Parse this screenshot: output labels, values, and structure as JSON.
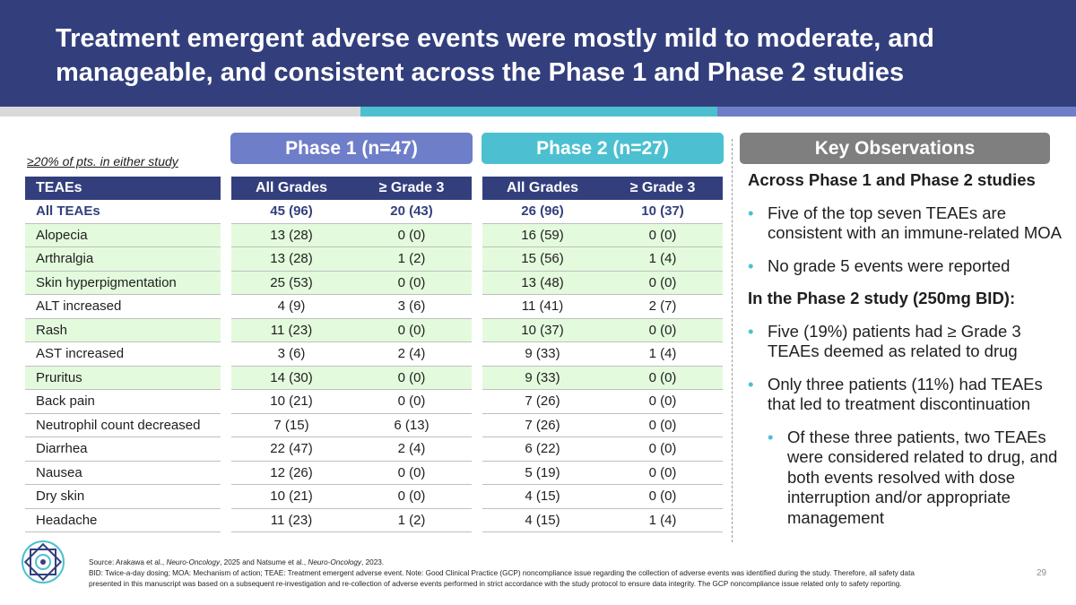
{
  "header": {
    "title_line1": "Treatment emergent adverse events were mostly mild to moderate, and",
    "title_line2": "manageable, and consistent across the Phase 1 and Phase 2 studies",
    "colors": {
      "navy": "#333f7d",
      "teal": "#4cc0d0",
      "periwinkle": "#6f7ec8",
      "gray": "#7f7f7f",
      "row_green": "#e3fbdc"
    }
  },
  "phase1_label": "Phase  1 (n=47)",
  "phase2_label": "Phase 2 (n=27)",
  "key_label": "Key Observations",
  "subnote": "≥20% of pts. in either study",
  "table": {
    "col_teae": "TEAEs",
    "col_all": "All Grades",
    "col_g3": "≥ Grade 3",
    "rows": [
      {
        "name": "All TEAEs",
        "p1_all": "45 (96)",
        "p1_g3": "20 (43)",
        "p2_all": "26 (96)",
        "p2_g3": "10 (37)"
      },
      {
        "name": "Alopecia",
        "p1_all": "13 (28)",
        "p1_g3": "0 (0)",
        "p2_all": "16 (59)",
        "p2_g3": "0 (0)"
      },
      {
        "name": "Arthralgia",
        "p1_all": "13 (28)",
        "p1_g3": "1 (2)",
        "p2_all": "15 (56)",
        "p2_g3": "1 (4)"
      },
      {
        "name": "Skin hyperpigmentation",
        "p1_all": "25 (53)",
        "p1_g3": "0 (0)",
        "p2_all": "13 (48)",
        "p2_g3": "0 (0)"
      },
      {
        "name": "ALT increased",
        "p1_all": "4 (9)",
        "p1_g3": "3 (6)",
        "p2_all": "11 (41)",
        "p2_g3": "2 (7)"
      },
      {
        "name": "Rash",
        "p1_all": "11 (23)",
        "p1_g3": "0 (0)",
        "p2_all": "10 (37)",
        "p2_g3": "0 (0)"
      },
      {
        "name": "AST increased",
        "p1_all": "3 (6)",
        "p1_g3": "2 (4)",
        "p2_all": "9 (33)",
        "p2_g3": "1 (4)"
      },
      {
        "name": "Pruritus",
        "p1_all": "14 (30)",
        "p1_g3": "0 (0)",
        "p2_all": "9 (33)",
        "p2_g3": "0 (0)"
      },
      {
        "name": "Back pain",
        "p1_all": "10 (21)",
        "p1_g3": "0 (0)",
        "p2_all": "7 (26)",
        "p2_g3": "0 (0)"
      },
      {
        "name": "Neutrophil count decreased",
        "p1_all": "7 (15)",
        "p1_g3": "6 (13)",
        "p2_all": "7 (26)",
        "p2_g3": "0 (0)"
      },
      {
        "name": "Diarrhea",
        "p1_all": "22 (47)",
        "p1_g3": "2 (4)",
        "p2_all": "6 (22)",
        "p2_g3": "0 (0)"
      },
      {
        "name": "Nausea",
        "p1_all": "12 (26)",
        "p1_g3": "0 (0)",
        "p2_all": "5 (19)",
        "p2_g3": "0 (0)"
      },
      {
        "name": "Dry skin",
        "p1_all": "10 (21)",
        "p1_g3": "0 (0)",
        "p2_all": "4 (15)",
        "p2_g3": "0 (0)"
      },
      {
        "name": "Headache",
        "p1_all": "11 (23)",
        "p1_g3": "1 (2)",
        "p2_all": "4 (15)",
        "p2_g3": "1 (4)"
      }
    ]
  },
  "observations": {
    "heading1": "Across Phase 1 and Phase 2 studies",
    "bullet1": "Five of the top seven TEAEs are consistent with an immune-related MOA",
    "bullet2": "No grade 5 events were reported",
    "heading2": "In the Phase 2 study (250mg BID):",
    "bullet3": "Five (19%) patients had ≥ Grade 3 TEAEs deemed as related to drug",
    "bullet4": "Only three patients (11%) had TEAEs that led to treatment discontinuation",
    "subbullet1": "Of these three patients, two TEAEs were considered related to drug, and both events resolved with dose interruption and/or appropriate management",
    "bullet_glyph": "•"
  },
  "footer": {
    "source_prefix": "Source: Arakawa et al., ",
    "journal1": "Neuro-Oncology",
    "source_mid": ", 2025 and Natsume et al., ",
    "journal2": "Neuro-Oncology",
    "source_suffix": ", 2023.",
    "notes": "BID: Twice-a-day dosing; MOA: Mechanism of action; TEAE: Treatment emergent adverse event. Note: Good Clinical Practice (GCP) noncompliance issue regarding the collection of adverse events was identified during the study. Therefore, all safety data presented in this manuscript was based on a subsequent re-investigation and re-collection of adverse events performed in strict accordance with the study protocol to ensure data integrity. The GCP noncompliance issue related only to safety reporting.",
    "page_number": "29"
  }
}
